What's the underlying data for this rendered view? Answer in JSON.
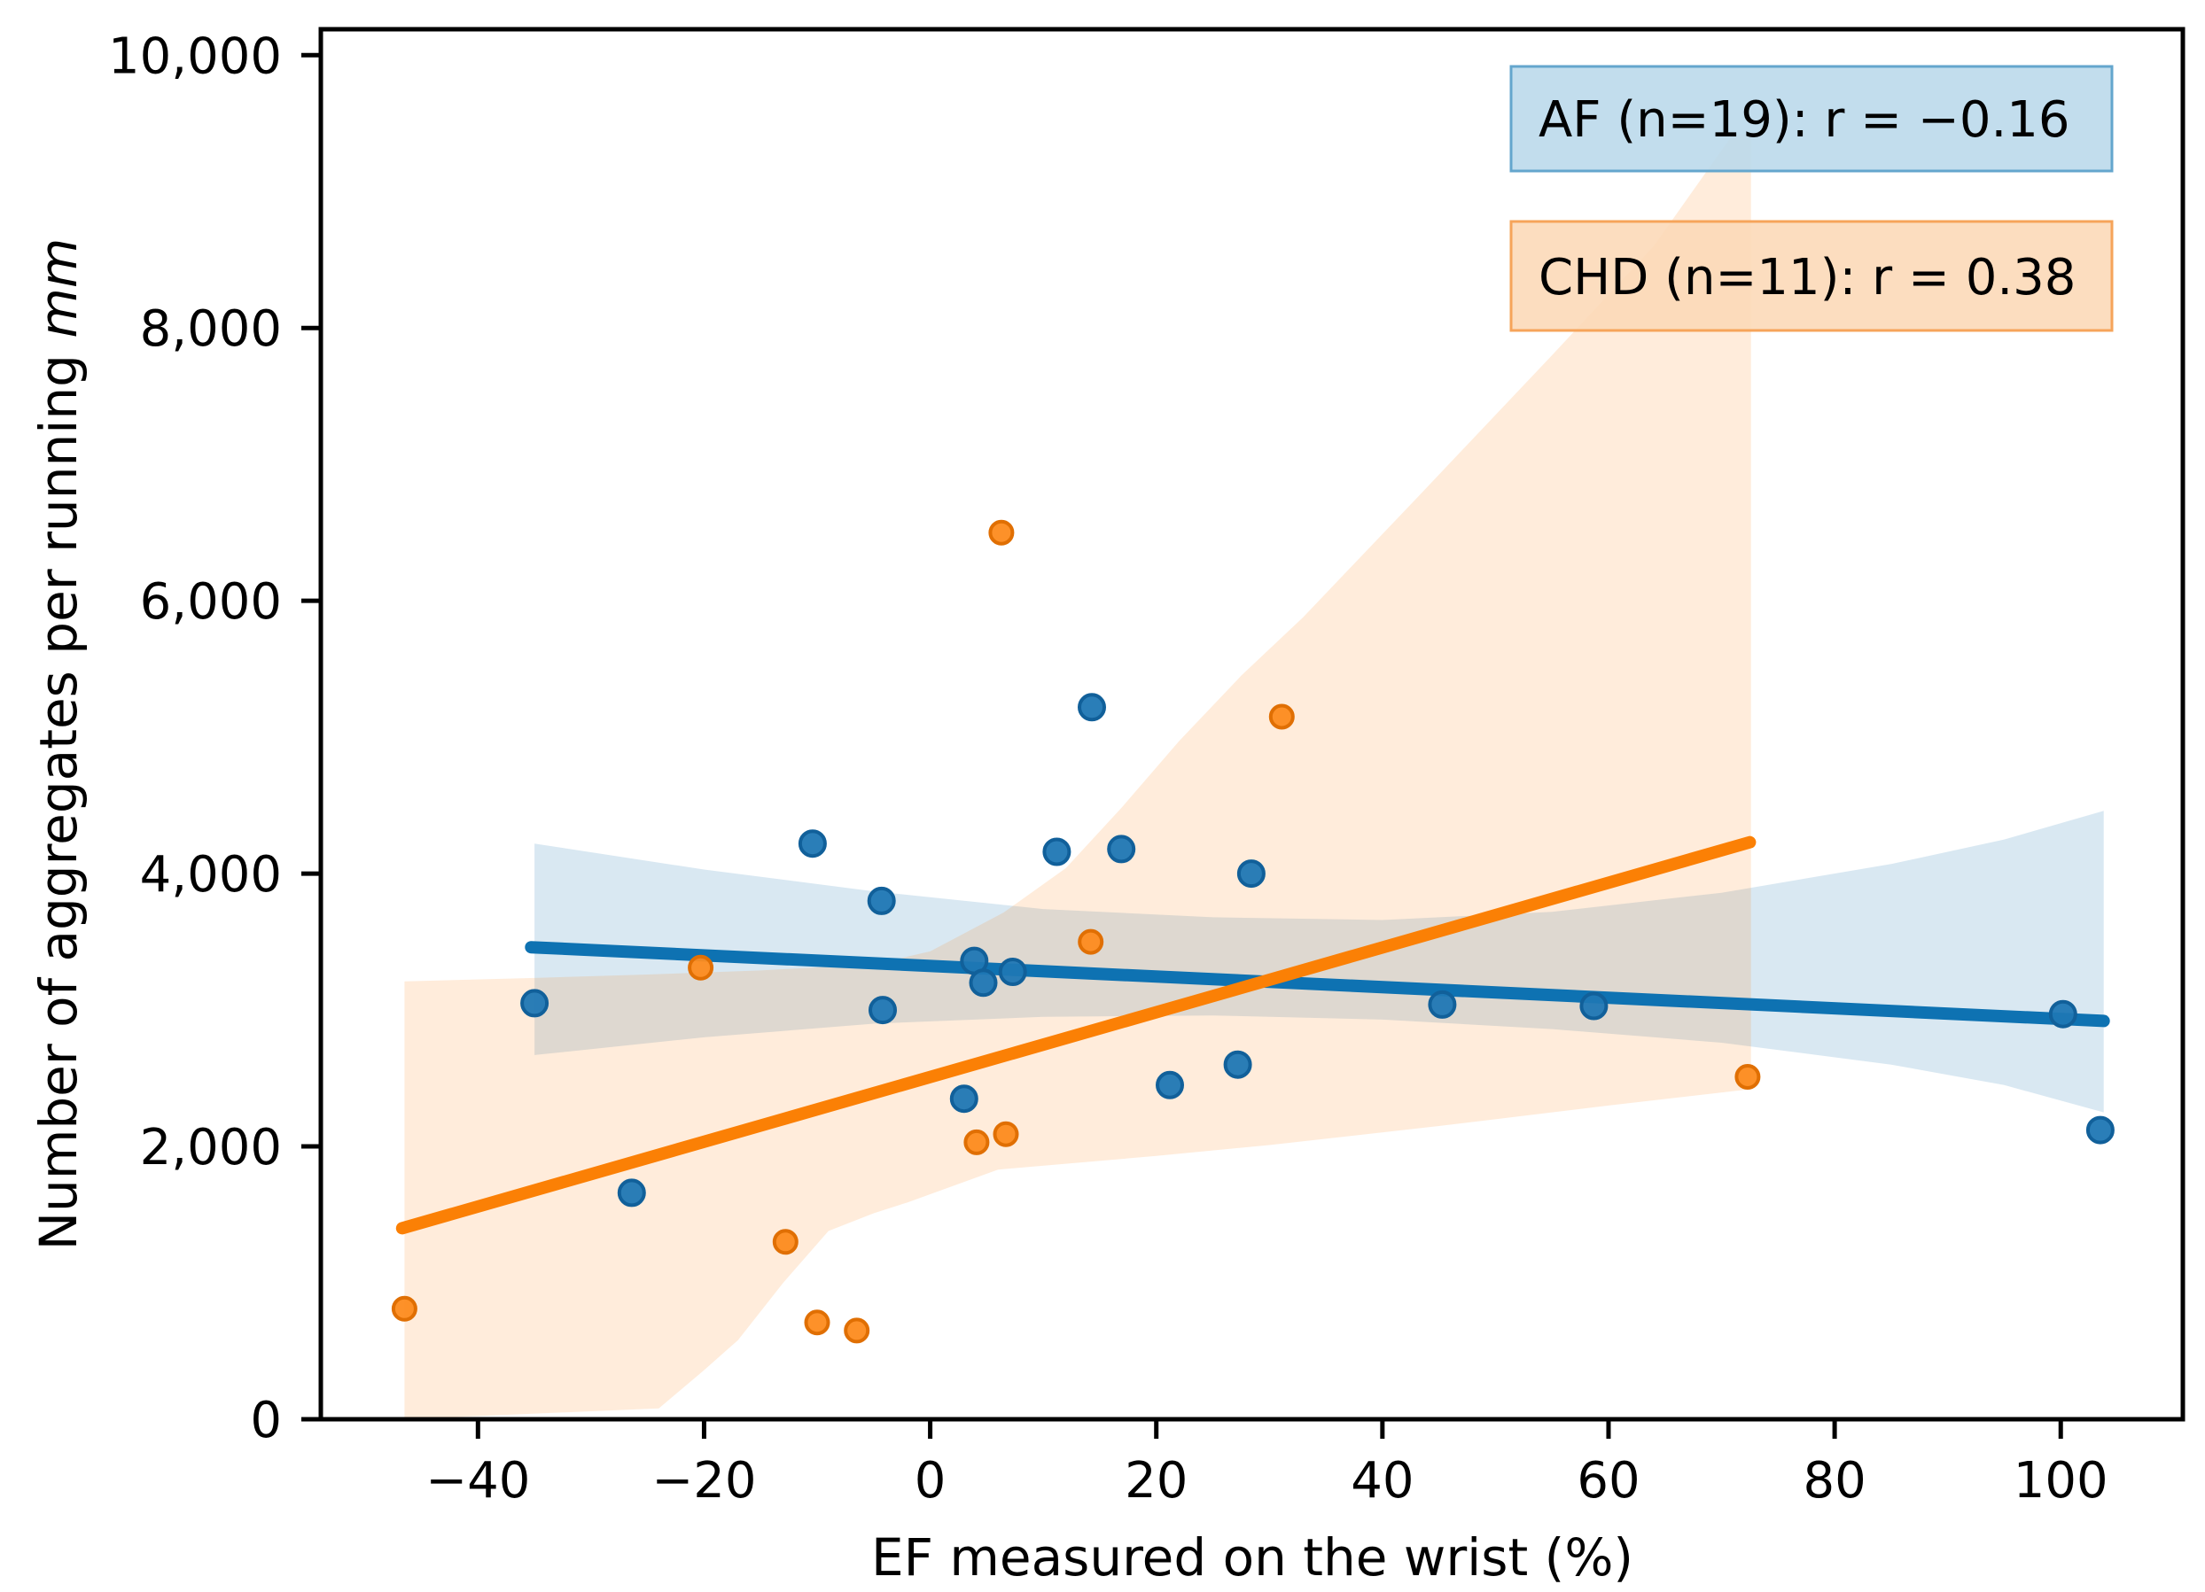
{
  "chart_data": {
    "type": "scatter",
    "title": "",
    "xlabel": "EF measured on the wrist (%)",
    "ylabel_main": "Number of aggregates per running ",
    "ylabel_italic": "mm",
    "xlim": [
      -53.9,
      110.8
    ],
    "ylim": [
      0,
      10190
    ],
    "grid": false,
    "legend_position": "upper right",
    "x_ticks": [
      {
        "v": -40,
        "label": "−40"
      },
      {
        "v": -20,
        "label": "−20"
      },
      {
        "v": 0,
        "label": "0"
      },
      {
        "v": 20,
        "label": "20"
      },
      {
        "v": 40,
        "label": "40"
      },
      {
        "v": 60,
        "label": "60"
      },
      {
        "v": 80,
        "label": "80"
      },
      {
        "v": 100,
        "label": "100"
      }
    ],
    "y_ticks": [
      {
        "v": 0,
        "label": "0"
      },
      {
        "v": 2000,
        "label": "2,000"
      },
      {
        "v": 4000,
        "label": "4,000"
      },
      {
        "v": 6000,
        "label": "6,000"
      },
      {
        "v": 8000,
        "label": "8,000"
      },
      {
        "v": 10000,
        "label": "10,000"
      }
    ],
    "series": [
      {
        "name": "AF",
        "n": 19,
        "r": -0.16,
        "legend": "AF (n=19): r = −0.16",
        "point_fill": "#1f77b4",
        "point_edge": "#11609a",
        "line_color": "#0e72b2",
        "band_fill": "rgba(31,119,180,0.17)",
        "legend_fill": "#b9d8ea",
        "legend_border": "#64a6cd",
        "points": [
          [
            -35,
            3050
          ],
          [
            -26.4,
            1660
          ],
          [
            -10.4,
            4220
          ],
          [
            -4.3,
            3800
          ],
          [
            -4.2,
            3000
          ],
          [
            3,
            2350
          ],
          [
            3.9,
            3360
          ],
          [
            4.7,
            3200
          ],
          [
            7.3,
            3280
          ],
          [
            11.2,
            4160
          ],
          [
            14.3,
            5220
          ],
          [
            16.9,
            4180
          ],
          [
            21.2,
            2450
          ],
          [
            27.2,
            2600
          ],
          [
            28.4,
            4000
          ],
          [
            45.3,
            3040
          ],
          [
            58.7,
            3030
          ],
          [
            100.2,
            2970
          ],
          [
            103.5,
            2120
          ]
        ],
        "regression": [
          [
            -35.3,
            3460
          ],
          [
            103.8,
            2920
          ]
        ],
        "band_upper": [
          [
            -35,
            4220
          ],
          [
            -20,
            4030
          ],
          [
            -5,
            3870
          ],
          [
            10,
            3740
          ],
          [
            25,
            3680
          ],
          [
            40,
            3660
          ],
          [
            55,
            3720
          ],
          [
            70,
            3860
          ],
          [
            85,
            4070
          ],
          [
            95,
            4250
          ],
          [
            103.8,
            4460
          ]
        ],
        "band_lower": [
          [
            -35,
            2670
          ],
          [
            -20,
            2800
          ],
          [
            -5,
            2900
          ],
          [
            10,
            2950
          ],
          [
            25,
            2960
          ],
          [
            40,
            2930
          ],
          [
            55,
            2860
          ],
          [
            70,
            2760
          ],
          [
            85,
            2600
          ],
          [
            95,
            2450
          ],
          [
            103.8,
            2250
          ]
        ]
      },
      {
        "name": "CHD",
        "n": 11,
        "r": 0.38,
        "legend": "CHD (n=11): r = 0.38",
        "point_fill": "#fd8b1e",
        "point_edge": "#e06f03",
        "line_color": "#fb8005",
        "band_fill": "rgba(255,127,14,0.15)",
        "legend_fill": "#fcd8b6",
        "legend_border": "#f6a45a",
        "points": [
          [
            -46.5,
            810
          ],
          [
            -20.3,
            3310
          ],
          [
            -12.8,
            1300
          ],
          [
            -10,
            710
          ],
          [
            -6.5,
            650
          ],
          [
            4.1,
            2030
          ],
          [
            6.7,
            2090
          ],
          [
            6.3,
            6500
          ],
          [
            14.2,
            3500
          ],
          [
            31.1,
            5150
          ],
          [
            72.3,
            2510
          ]
        ],
        "regression": [
          [
            -46.7,
            1400
          ],
          [
            72.5,
            4230
          ]
        ],
        "band_upper": [
          [
            -46.5,
            3210
          ],
          [
            -35,
            3235
          ],
          [
            -25,
            3260
          ],
          [
            -15,
            3290
          ],
          [
            -5,
            3335
          ],
          [
            0,
            3430
          ],
          [
            6.5,
            3715
          ],
          [
            12,
            4040
          ],
          [
            17,
            4490
          ],
          [
            22,
            4970
          ],
          [
            27.5,
            5450
          ],
          [
            33,
            5880
          ],
          [
            43,
            6750
          ],
          [
            55,
            7800
          ],
          [
            64,
            8600
          ],
          [
            71,
            9420
          ],
          [
            72.6,
            9420
          ]
        ],
        "band_lower": [
          [
            -46.5,
            0
          ],
          [
            -24,
            80
          ],
          [
            -20,
            360
          ],
          [
            -17,
            580
          ],
          [
            -13,
            1000
          ],
          [
            -9,
            1380
          ],
          [
            -5,
            1510
          ],
          [
            -2,
            1590
          ],
          [
            6,
            1830
          ],
          [
            20,
            1930
          ],
          [
            30,
            2010
          ],
          [
            45,
            2150
          ],
          [
            60,
            2300
          ],
          [
            72.6,
            2420
          ]
        ]
      }
    ]
  }
}
